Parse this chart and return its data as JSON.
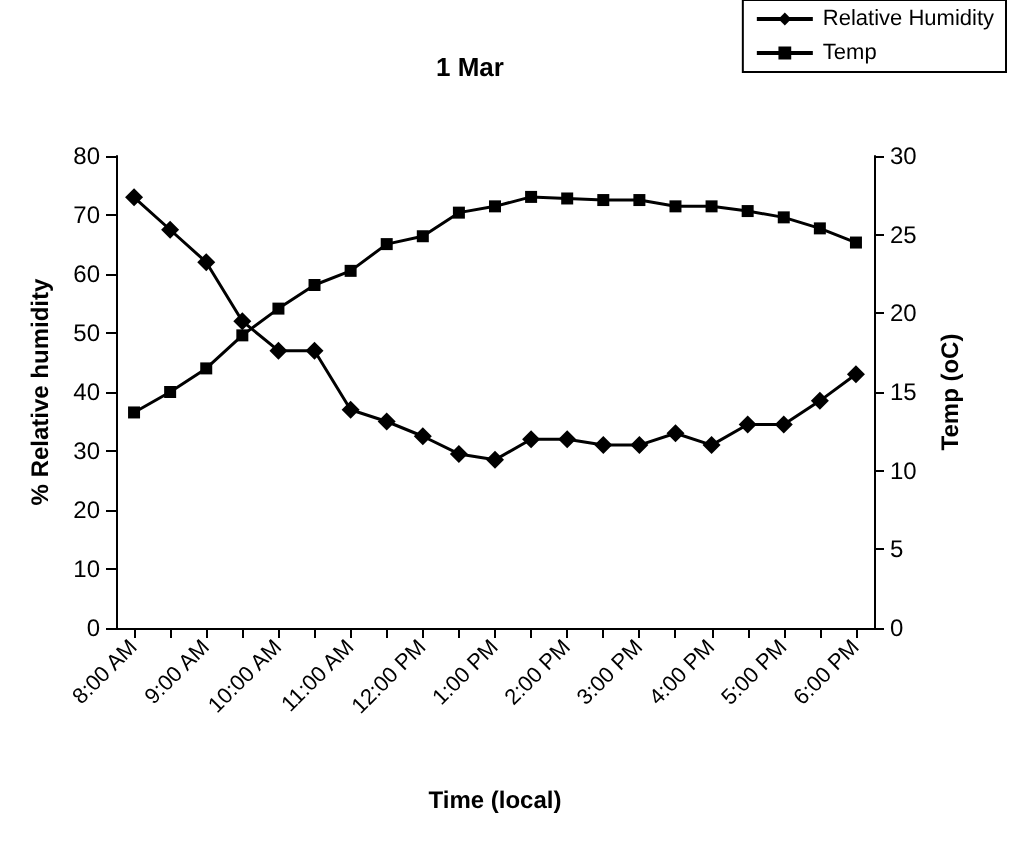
{
  "chart_data": {
    "type": "line",
    "title": "1 Mar",
    "xlabel": "Time (local)",
    "ylabel": "% Relative humidity",
    "y2label": "Temp (oC)",
    "categories": [
      "8:00 AM",
      null,
      "9:00 AM",
      null,
      "10:00 AM",
      null,
      "11:00 AM",
      null,
      "12:00 PM",
      null,
      "1:00 PM",
      null,
      "2:00 PM",
      null,
      "3:00 PM",
      null,
      "4:00 PM",
      null,
      "5:00 PM",
      null,
      "6:00 PM"
    ],
    "series": [
      {
        "name": "Relative Humidity",
        "color": "#000000",
        "marker": "diamond",
        "values": [
          73,
          67.5,
          62,
          52,
          47,
          47,
          37,
          35,
          32.5,
          29.5,
          28.5,
          32,
          32,
          31,
          31,
          33,
          31,
          34.5,
          34.5,
          38.5,
          43
        ]
      },
      {
        "name": "Temp",
        "color": "#000000",
        "marker": "square",
        "axis": "y2",
        "values": [
          13.7,
          15,
          16.5,
          18.6,
          20.3,
          21.8,
          22.7,
          24.4,
          24.9,
          26.4,
          26.8,
          27.4,
          27.3,
          27.2,
          27.2,
          26.8,
          26.8,
          26.5,
          26.1,
          25.4,
          24.5
        ]
      }
    ],
    "ylim": [
      0,
      80
    ],
    "yticks": [
      0,
      10,
      20,
      30,
      40,
      50,
      60,
      70,
      80
    ],
    "y2lim": [
      0,
      30
    ],
    "y2ticks": [
      0,
      5,
      10,
      15,
      20,
      25,
      30
    ],
    "grid": false,
    "legend": "top right",
    "line_style": "solid"
  }
}
